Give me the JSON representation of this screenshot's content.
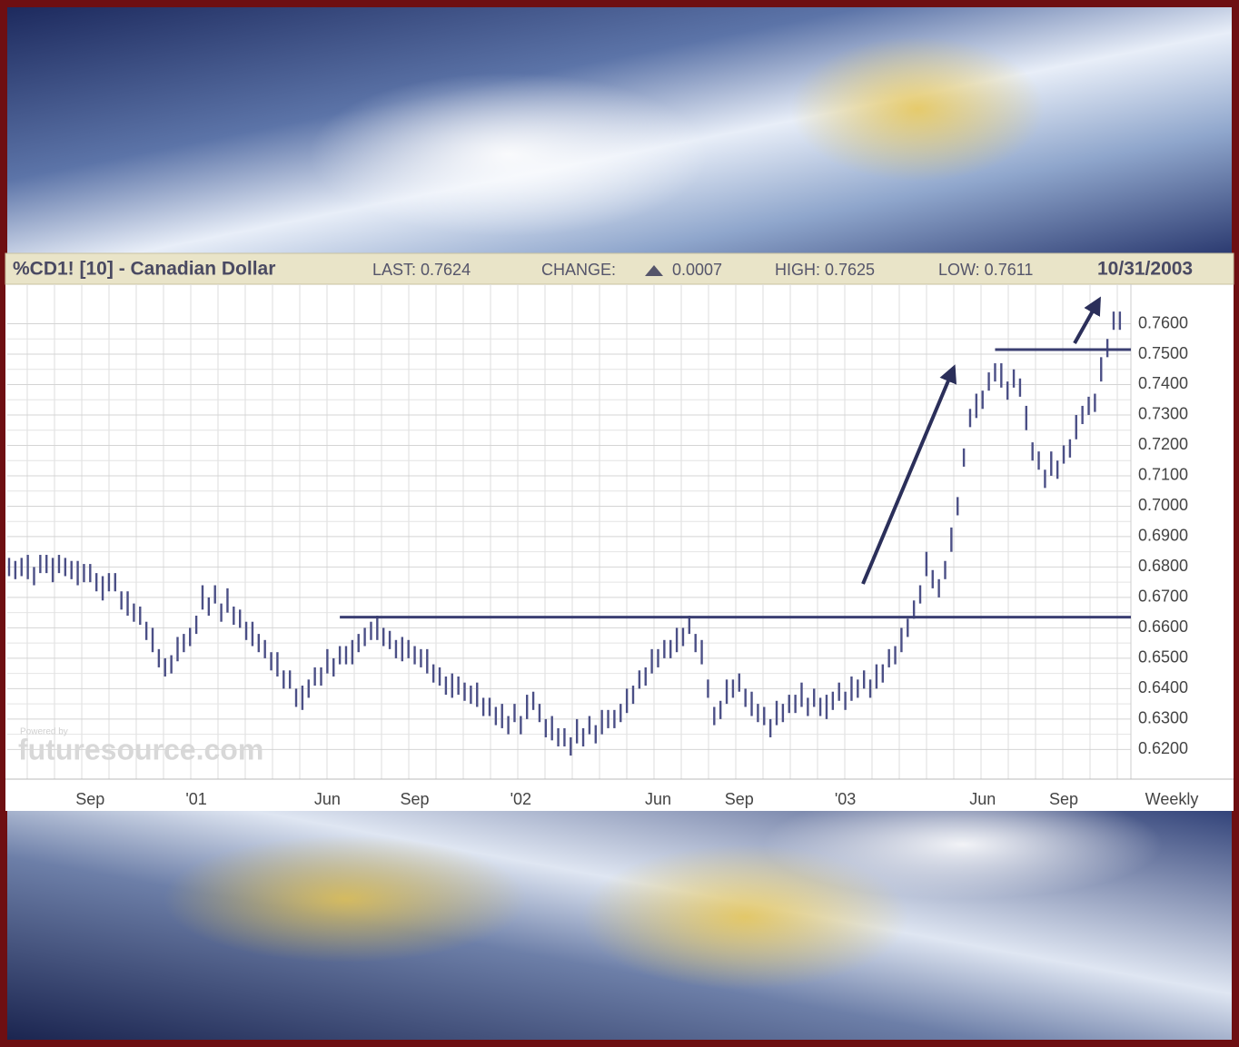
{
  "chart_data": {
    "type": "ohlc",
    "title": "%CD1! [10] - Canadian Dollar",
    "stats": [
      "LAST: 0.7624",
      "CHANGE:",
      "0.0007",
      "HIGH: 0.7625",
      "LOW: 0.7611"
    ],
    "date": "10/31/2003",
    "period": "Weekly",
    "watermark": [
      "Powered by",
      "futuresource.com"
    ],
    "color": "#4b4f86",
    "grid": true,
    "ylim": [
      0.611,
      0.7715
    ],
    "yticks": [
      {
        "value": 0.62,
        "label": "0.6200"
      },
      {
        "value": 0.63,
        "label": "0.6300"
      },
      {
        "value": 0.64,
        "label": "0.6400"
      },
      {
        "value": 0.65,
        "label": "0.6500"
      },
      {
        "value": 0.66,
        "label": "0.6600"
      },
      {
        "value": 0.67,
        "label": "0.6700"
      },
      {
        "value": 0.68,
        "label": "0.6800"
      },
      {
        "value": 0.69,
        "label": "0.6900"
      },
      {
        "value": 0.7,
        "label": "0.7000"
      },
      {
        "value": 0.71,
        "label": "0.7100"
      },
      {
        "value": 0.72,
        "label": "0.7200"
      },
      {
        "value": 0.73,
        "label": "0.7300"
      },
      {
        "value": 0.74,
        "label": "0.7400"
      },
      {
        "value": 0.75,
        "label": "0.7500"
      },
      {
        "value": 0.76,
        "label": "0.7600"
      }
    ],
    "categories": [
      null,
      null,
      null,
      null,
      null,
      null,
      null,
      null,
      null,
      null,
      null,
      null,
      null,
      "Sep",
      null,
      null,
      null,
      null,
      null,
      null,
      null,
      null,
      null,
      null,
      null,
      null,
      null,
      null,
      null,
      null,
      "'01",
      null,
      null,
      null,
      null,
      null,
      null,
      null,
      null,
      null,
      null,
      null,
      null,
      null,
      null,
      null,
      null,
      null,
      null,
      null,
      null,
      "Jun",
      null,
      null,
      null,
      null,
      null,
      null,
      null,
      null,
      null,
      null,
      null,
      null,
      null,
      "Sep",
      null,
      null,
      null,
      null,
      null,
      null,
      null,
      null,
      null,
      null,
      null,
      null,
      null,
      null,
      null,
      null,
      "'02",
      null,
      null,
      null,
      null,
      null,
      null,
      null,
      null,
      null,
      null,
      null,
      null,
      null,
      null,
      null,
      null,
      null,
      null,
      null,
      null,
      null,
      "Jun",
      null,
      null,
      null,
      null,
      null,
      null,
      null,
      null,
      null,
      null,
      null,
      null,
      "Sep",
      null,
      null,
      null,
      null,
      null,
      null,
      null,
      null,
      null,
      null,
      null,
      null,
      null,
      null,
      null,
      null,
      "'03",
      null,
      null,
      null,
      null,
      null,
      null,
      null,
      null,
      null,
      null,
      null,
      null,
      null,
      null,
      null,
      null,
      null,
      null,
      null,
      null,
      null,
      "Jun",
      null,
      null,
      null,
      null,
      null,
      null,
      null,
      null,
      null,
      null,
      null,
      null,
      "Sep",
      null,
      null,
      null,
      null,
      null,
      null,
      null,
      null,
      null
    ],
    "high": [
      0.683,
      0.682,
      0.683,
      0.684,
      0.68,
      0.684,
      0.684,
      0.683,
      0.684,
      0.683,
      0.682,
      0.682,
      0.681,
      0.681,
      0.678,
      0.677,
      0.678,
      0.678,
      0.672,
      0.672,
      0.668,
      0.667,
      0.662,
      0.66,
      0.653,
      0.65,
      0.651,
      0.657,
      0.658,
      0.66,
      0.664,
      0.674,
      0.67,
      0.674,
      0.668,
      0.673,
      0.667,
      0.666,
      0.662,
      0.662,
      0.658,
      0.656,
      0.652,
      0.652,
      0.646,
      0.646,
      0.64,
      0.641,
      0.643,
      0.647,
      0.647,
      0.653,
      0.65,
      0.654,
      0.654,
      0.656,
      0.658,
      0.66,
      0.662,
      0.664,
      0.66,
      0.659,
      0.656,
      0.657,
      0.656,
      0.654,
      0.653,
      0.653,
      0.648,
      0.647,
      0.644,
      0.645,
      0.644,
      0.642,
      0.641,
      0.642,
      0.637,
      0.637,
      0.634,
      0.635,
      0.631,
      0.635,
      0.631,
      0.638,
      0.639,
      0.635,
      0.63,
      0.631,
      0.627,
      0.627,
      0.624,
      0.63,
      0.627,
      0.631,
      0.628,
      0.633,
      0.633,
      0.633,
      0.635,
      0.64,
      0.641,
      0.646,
      0.647,
      0.653,
      0.653,
      0.656,
      0.656,
      0.66,
      0.66,
      0.664,
      0.658,
      0.656,
      0.643,
      0.634,
      0.636,
      0.643,
      0.643,
      0.645,
      0.64,
      0.639,
      0.635,
      0.634,
      0.63,
      0.636,
      0.635,
      0.638,
      0.638,
      0.642,
      0.637,
      0.64,
      0.637,
      0.638,
      0.639,
      0.642,
      0.639,
      0.644,
      0.643,
      0.646,
      0.643,
      0.648,
      0.648,
      0.653,
      0.654,
      0.66,
      0.663,
      0.669,
      0.674,
      0.685,
      0.679,
      0.676,
      0.682,
      0.693,
      0.703,
      0.719,
      0.732,
      0.737,
      0.738,
      0.744,
      0.747,
      0.747,
      0.741,
      0.745,
      0.742,
      0.733,
      0.721,
      0.718,
      0.712,
      0.718,
      0.715,
      0.72,
      0.722,
      0.73,
      0.733,
      0.736,
      0.737,
      0.749,
      0.755,
      0.764,
      0.764
    ],
    "low": [
      0.677,
      0.676,
      0.677,
      0.676,
      0.674,
      0.678,
      0.678,
      0.675,
      0.678,
      0.677,
      0.676,
      0.674,
      0.675,
      0.675,
      0.672,
      0.669,
      0.672,
      0.672,
      0.666,
      0.664,
      0.662,
      0.661,
      0.656,
      0.652,
      0.647,
      0.644,
      0.645,
      0.649,
      0.652,
      0.654,
      0.658,
      0.666,
      0.664,
      0.668,
      0.662,
      0.665,
      0.661,
      0.66,
      0.656,
      0.654,
      0.652,
      0.65,
      0.646,
      0.644,
      0.64,
      0.64,
      0.634,
      0.633,
      0.637,
      0.641,
      0.641,
      0.645,
      0.644,
      0.648,
      0.648,
      0.648,
      0.652,
      0.654,
      0.656,
      0.656,
      0.654,
      0.653,
      0.65,
      0.649,
      0.65,
      0.648,
      0.647,
      0.645,
      0.642,
      0.641,
      0.638,
      0.637,
      0.638,
      0.636,
      0.635,
      0.634,
      0.631,
      0.631,
      0.628,
      0.627,
      0.625,
      0.629,
      0.625,
      0.63,
      0.633,
      0.629,
      0.624,
      0.623,
      0.621,
      0.621,
      0.618,
      0.622,
      0.621,
      0.625,
      0.622,
      0.625,
      0.627,
      0.627,
      0.629,
      0.632,
      0.635,
      0.64,
      0.641,
      0.645,
      0.647,
      0.65,
      0.65,
      0.652,
      0.654,
      0.658,
      0.652,
      0.648,
      0.637,
      0.628,
      0.63,
      0.635,
      0.637,
      0.639,
      0.634,
      0.631,
      0.629,
      0.628,
      0.624,
      0.628,
      0.629,
      0.632,
      0.632,
      0.634,
      0.631,
      0.634,
      0.631,
      0.63,
      0.633,
      0.636,
      0.633,
      0.636,
      0.637,
      0.64,
      0.637,
      0.64,
      0.642,
      0.647,
      0.648,
      0.652,
      0.657,
      0.663,
      0.668,
      0.677,
      0.673,
      0.67,
      0.676,
      0.685,
      0.697,
      0.713,
      0.726,
      0.729,
      0.732,
      0.738,
      0.741,
      0.739,
      0.735,
      0.739,
      0.736,
      0.725,
      0.715,
      0.712,
      0.706,
      0.71,
      0.709,
      0.714,
      0.716,
      0.722,
      0.727,
      0.73,
      0.731,
      0.741,
      0.749,
      0.758,
      0.758
    ],
    "levels": [
      {
        "value": 0.6635,
        "from": 53
      },
      {
        "value": 0.7515,
        "from": 158
      }
    ]
  }
}
